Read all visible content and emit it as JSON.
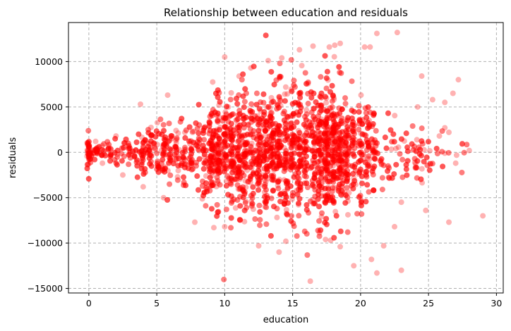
{
  "chart_data": {
    "type": "scatter",
    "title": "Relationship between education and residuals",
    "xlabel": "education",
    "ylabel": "residuals",
    "xlim": [
      -1.5,
      30.5
    ],
    "ylim": [
      -15500,
      14300
    ],
    "x_ticks": [
      0,
      5,
      10,
      15,
      20,
      25,
      30
    ],
    "x_tick_labels": [
      "0",
      "5",
      "10",
      "15",
      "20",
      "25",
      "30"
    ],
    "y_ticks": [
      -15000,
      -10000,
      -5000,
      0,
      5000,
      10000
    ],
    "y_tick_labels": [
      "−15000",
      "−10000",
      "−5000",
      "0",
      "5000",
      "10000"
    ],
    "grid": true,
    "grid_style": "dashed",
    "marker_color": "#ff0000",
    "marker_alpha": 0.3,
    "series": [
      {
        "envelope": [
          [
            0,
            1000
          ],
          [
            2,
            1800
          ],
          [
            4,
            2800
          ],
          [
            6,
            4200
          ],
          [
            8,
            5500
          ],
          [
            10,
            7000
          ],
          [
            12,
            8200
          ],
          [
            14,
            9000
          ],
          [
            16,
            9200
          ],
          [
            18,
            8500
          ],
          [
            20,
            7000
          ],
          [
            22,
            6000
          ],
          [
            24,
            5000
          ],
          [
            26,
            3800
          ],
          [
            28,
            3000
          ],
          [
            30,
            2500
          ]
        ],
        "sample_points": [
          [
            10,
            10500
          ],
          [
            13.2,
            10100
          ],
          [
            14.2,
            10400
          ],
          [
            15.5,
            11300
          ],
          [
            16.5,
            11700
          ],
          [
            17.7,
            11600
          ],
          [
            18.1,
            11800
          ],
          [
            18.5,
            12000
          ],
          [
            20.3,
            11600
          ],
          [
            20.7,
            11600
          ],
          [
            21.2,
            13100
          ],
          [
            22.7,
            13200
          ],
          [
            5.8,
            6300
          ],
          [
            3.8,
            5300
          ],
          [
            24.5,
            8400
          ],
          [
            24.2,
            5000
          ],
          [
            25.3,
            5800
          ],
          [
            26.2,
            5500
          ],
          [
            26.8,
            6500
          ],
          [
            27.2,
            8000
          ],
          [
            26.5,
            2200
          ],
          [
            26.2,
            2700
          ],
          [
            25.8,
            1800
          ],
          [
            26.2,
            -100
          ],
          [
            27,
            -1200
          ],
          [
            28,
            200
          ],
          [
            29,
            -7000
          ],
          [
            24.8,
            -6400
          ],
          [
            26.5,
            -7700
          ],
          [
            23,
            -5500
          ],
          [
            22.5,
            -8200
          ],
          [
            23,
            -13000
          ],
          [
            21.2,
            -13300
          ],
          [
            20.8,
            -11800
          ],
          [
            16.3,
            -14200
          ],
          [
            19.5,
            -12500
          ],
          [
            21.7,
            -10300
          ],
          [
            18.5,
            -10400
          ],
          [
            17.8,
            -9700
          ],
          [
            14,
            -11000
          ],
          [
            12.5,
            -10300
          ],
          [
            14.5,
            -9800
          ],
          [
            10,
            -8200
          ],
          [
            9.2,
            -8300
          ],
          [
            7.8,
            -7700
          ],
          [
            5.5,
            -5000
          ],
          [
            4,
            -3800
          ],
          [
            2.5,
            -2500
          ],
          [
            1,
            -1200
          ],
          [
            0,
            -600
          ],
          [
            0,
            800
          ],
          [
            0.5,
            1200
          ],
          [
            2,
            1800
          ]
        ]
      }
    ]
  }
}
